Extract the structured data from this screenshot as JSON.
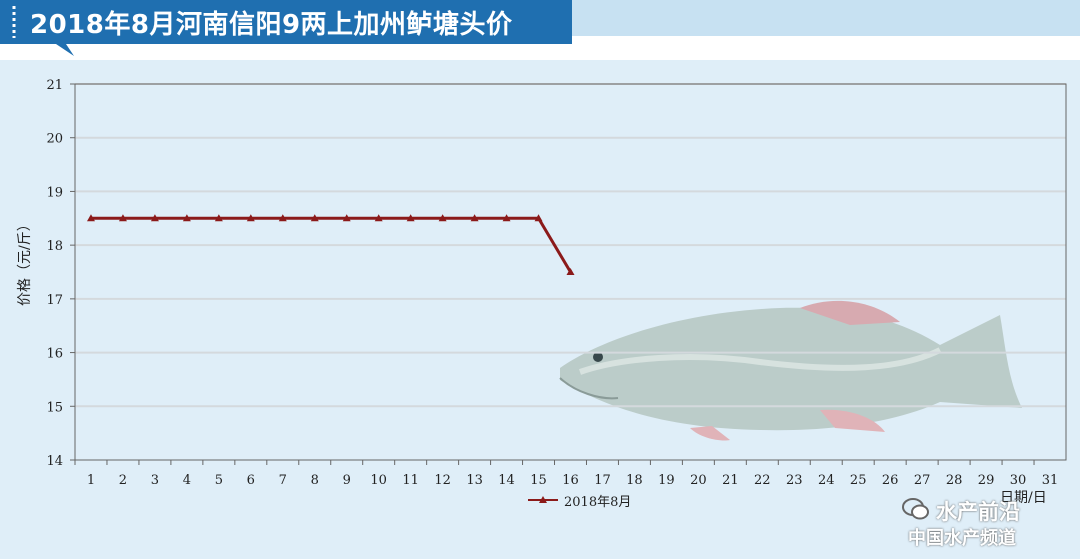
{
  "header": {
    "title": "2018年8月河南信阳9两上加州鲈塘头价",
    "banner_color": "#1f6fb0"
  },
  "chart_data": {
    "type": "line",
    "title": "2018年8月河南信阳9两上加州鲈塘头价",
    "ylabel": "价格（元/斤）",
    "xlabel": "日期/日",
    "ylim": [
      14,
      21
    ],
    "yticks": [
      14,
      15,
      16,
      17,
      18,
      19,
      20,
      21
    ],
    "categories": [
      "1",
      "2",
      "3",
      "4",
      "5",
      "6",
      "7",
      "8",
      "9",
      "10",
      "11",
      "12",
      "13",
      "14",
      "15",
      "16",
      "17",
      "18",
      "19",
      "20",
      "21",
      "22",
      "23",
      "24",
      "25",
      "26",
      "27",
      "28",
      "29",
      "30",
      "31"
    ],
    "series": [
      {
        "name": "2018年8月",
        "color": "#8b1a1a",
        "marker": "triangle",
        "values": [
          18.5,
          18.5,
          18.5,
          18.5,
          18.5,
          18.5,
          18.5,
          18.5,
          18.5,
          18.5,
          18.5,
          18.5,
          18.5,
          18.5,
          18.5,
          17.5,
          null,
          null,
          null,
          null,
          null,
          null,
          null,
          null,
          null,
          null,
          null,
          null,
          null,
          null,
          null
        ]
      }
    ],
    "grid": true,
    "legend_position": "bottom-center",
    "background_color": "#dfeef8"
  },
  "watermark": {
    "line1": "水产前沿",
    "line2": "中国水产频道",
    "icon": "wechat-icon"
  }
}
